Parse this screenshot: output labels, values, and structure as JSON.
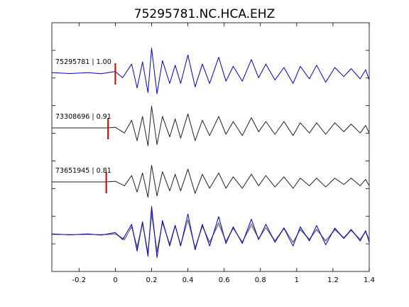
{
  "chart_data": {
    "type": "line",
    "title": "75295781.NC.HCA.EHZ",
    "xlabel": "",
    "ylabel": "",
    "xlim": [
      -0.35,
      1.4
    ],
    "grid": false,
    "x_ticks": [
      -0.2,
      0,
      0.2,
      0.4,
      0.6,
      0.8,
      1,
      1.2,
      1.4
    ],
    "x_tick_labels": [
      "-0.2",
      "0",
      "0.2",
      "0.4",
      "0.6",
      "0.8",
      "1",
      "1.2",
      "1.4"
    ],
    "y_ticks": [
      1,
      2,
      3,
      4,
      5,
      6,
      7,
      8
    ],
    "traces": [
      {
        "label": "75295781 | 1.00",
        "color": "#0000cc",
        "pick_time": 0.0,
        "pick_color": "#cc0000",
        "waveform": [
          [
            -0.35,
            0.05
          ],
          [
            -0.25,
            -0.03
          ],
          [
            -0.15,
            0.05
          ],
          [
            -0.08,
            -0.05
          ],
          [
            0.0,
            0.15
          ],
          [
            0.04,
            -0.4
          ],
          [
            0.09,
            0.8
          ],
          [
            0.12,
            -1.3
          ],
          [
            0.15,
            1.0
          ],
          [
            0.18,
            -1.7
          ],
          [
            0.2,
            2.2
          ],
          [
            0.23,
            -1.8
          ],
          [
            0.26,
            1.1
          ],
          [
            0.3,
            -0.9
          ],
          [
            0.33,
            0.7
          ],
          [
            0.36,
            -0.9
          ],
          [
            0.4,
            1.6
          ],
          [
            0.44,
            -1.2
          ],
          [
            0.48,
            0.8
          ],
          [
            0.52,
            -0.9
          ],
          [
            0.57,
            1.4
          ],
          [
            0.61,
            -0.7
          ],
          [
            0.65,
            0.6
          ],
          [
            0.7,
            -0.7
          ],
          [
            0.75,
            1.2
          ],
          [
            0.79,
            -0.4
          ],
          [
            0.83,
            0.8
          ],
          [
            0.88,
            -0.6
          ],
          [
            0.93,
            0.5
          ],
          [
            0.98,
            -0.9
          ],
          [
            1.02,
            0.6
          ],
          [
            1.07,
            -0.5
          ],
          [
            1.11,
            0.7
          ],
          [
            1.16,
            -0.8
          ],
          [
            1.21,
            0.5
          ],
          [
            1.26,
            -0.3
          ],
          [
            1.3,
            0.4
          ],
          [
            1.35,
            -0.5
          ],
          [
            1.38,
            0.3
          ],
          [
            1.4,
            -0.6
          ]
        ]
      },
      {
        "label": "73308696 | 0.91",
        "color": "#222222",
        "pick_time": -0.04,
        "pick_color": "#cc0000",
        "waveform": [
          [
            -0.35,
            0.0
          ],
          [
            -0.04,
            0.0
          ],
          [
            0.0,
            0.05
          ],
          [
            0.05,
            -0.4
          ],
          [
            0.09,
            0.6
          ],
          [
            0.12,
            -1.0
          ],
          [
            0.15,
            0.9
          ],
          [
            0.18,
            -1.4
          ],
          [
            0.2,
            1.7
          ],
          [
            0.23,
            -1.3
          ],
          [
            0.26,
            0.9
          ],
          [
            0.3,
            -0.7
          ],
          [
            0.33,
            0.7
          ],
          [
            0.36,
            -0.8
          ],
          [
            0.4,
            1.1
          ],
          [
            0.44,
            -1.0
          ],
          [
            0.48,
            0.6
          ],
          [
            0.52,
            -0.6
          ],
          [
            0.57,
            0.9
          ],
          [
            0.61,
            -0.5
          ],
          [
            0.65,
            0.5
          ],
          [
            0.7,
            -0.6
          ],
          [
            0.75,
            0.8
          ],
          [
            0.79,
            -0.3
          ],
          [
            0.83,
            0.5
          ],
          [
            0.88,
            -0.5
          ],
          [
            0.93,
            0.5
          ],
          [
            0.98,
            -0.6
          ],
          [
            1.02,
            0.4
          ],
          [
            1.07,
            -0.4
          ],
          [
            1.11,
            0.4
          ],
          [
            1.16,
            -0.5
          ],
          [
            1.21,
            0.4
          ],
          [
            1.26,
            -0.3
          ],
          [
            1.3,
            0.3
          ],
          [
            1.35,
            -0.4
          ],
          [
            1.38,
            0.2
          ],
          [
            1.4,
            -0.4
          ]
        ]
      },
      {
        "label": "73651945 | 0.81",
        "color": "#222222",
        "pick_time": -0.05,
        "pick_color": "#cc0000",
        "waveform": [
          [
            -0.35,
            0.0
          ],
          [
            -0.05,
            0.0
          ],
          [
            0.0,
            0.05
          ],
          [
            0.05,
            -0.3
          ],
          [
            0.09,
            0.5
          ],
          [
            0.12,
            -0.8
          ],
          [
            0.15,
            0.7
          ],
          [
            0.18,
            -1.2
          ],
          [
            0.2,
            1.3
          ],
          [
            0.23,
            -1.1
          ],
          [
            0.26,
            0.8
          ],
          [
            0.3,
            -0.7
          ],
          [
            0.33,
            0.6
          ],
          [
            0.36,
            -0.7
          ],
          [
            0.4,
            1.0
          ],
          [
            0.44,
            -0.9
          ],
          [
            0.48,
            0.6
          ],
          [
            0.52,
            -0.5
          ],
          [
            0.57,
            0.7
          ],
          [
            0.61,
            -0.5
          ],
          [
            0.65,
            0.4
          ],
          [
            0.7,
            -0.5
          ],
          [
            0.75,
            0.6
          ],
          [
            0.79,
            -0.3
          ],
          [
            0.83,
            0.5
          ],
          [
            0.88,
            -0.4
          ],
          [
            0.93,
            0.4
          ],
          [
            0.98,
            -0.5
          ],
          [
            1.02,
            0.3
          ],
          [
            1.07,
            -0.3
          ],
          [
            1.11,
            0.3
          ],
          [
            1.16,
            -0.4
          ],
          [
            1.21,
            0.3
          ],
          [
            1.26,
            -0.2
          ],
          [
            1.3,
            0.3
          ],
          [
            1.35,
            -0.3
          ],
          [
            1.38,
            0.2
          ],
          [
            1.4,
            -0.3
          ]
        ]
      }
    ],
    "overlay": {
      "description_colors": [
        "#0000cc",
        "#666666",
        "#999999"
      ]
    }
  }
}
